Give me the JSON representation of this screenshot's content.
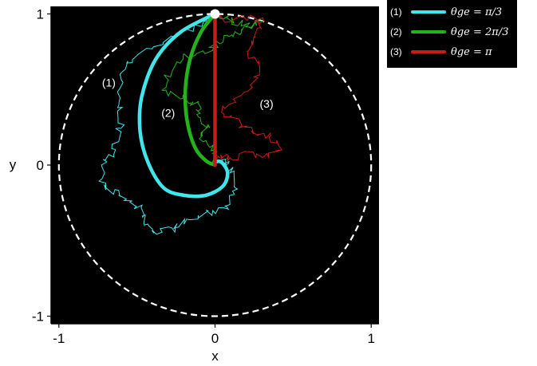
{
  "chart_data": {
    "type": "line",
    "title": "",
    "xlabel": "x",
    "ylabel": "y",
    "xlim": [
      -1.05,
      1.05
    ],
    "ylim": [
      -1.05,
      1.05
    ],
    "xticks": [
      {
        "value": -1,
        "label": "-1"
      },
      {
        "value": 0,
        "label": "0"
      },
      {
        "value": 1,
        "label": "1"
      }
    ],
    "yticks": [
      {
        "value": -1,
        "label": "-1"
      },
      {
        "value": 0,
        "label": "0"
      },
      {
        "value": 1,
        "label": "1"
      }
    ],
    "background": "#000000",
    "grid": false,
    "legend_position": "outside-top-right",
    "unit_circle": {
      "radius": 1,
      "color": "#ffffff",
      "dashed": true
    },
    "start_point": {
      "x": 0,
      "y": 1
    },
    "series": [
      {
        "tag": "(1)",
        "name": "θge = π/3",
        "color": "#41e6ec",
        "label_position": {
          "x": -0.68,
          "y": 0.52
        },
        "smooth": [
          [
            0,
            1
          ],
          [
            -0.22,
            0.88
          ],
          [
            -0.38,
            0.7
          ],
          [
            -0.47,
            0.45
          ],
          [
            -0.48,
            0.22
          ],
          [
            -0.43,
            0.02
          ],
          [
            -0.33,
            -0.15
          ],
          [
            -0.2,
            -0.2
          ],
          [
            -0.06,
            -0.2
          ],
          [
            0.05,
            -0.14
          ],
          [
            0.08,
            -0.05
          ],
          [
            0.04,
            0.02
          ],
          [
            0,
            0.02
          ]
        ],
        "noisy": [
          [
            0,
            1
          ],
          [
            -0.1,
            0.93
          ],
          [
            -0.25,
            0.86
          ],
          [
            -0.4,
            0.78
          ],
          [
            -0.55,
            0.7
          ],
          [
            -0.6,
            0.6
          ],
          [
            -0.63,
            0.45
          ],
          [
            -0.6,
            0.32
          ],
          [
            -0.62,
            0.2
          ],
          [
            -0.65,
            0.1
          ],
          [
            -0.7,
            0.0
          ],
          [
            -0.72,
            -0.12
          ],
          [
            -0.66,
            -0.18
          ],
          [
            -0.55,
            -0.24
          ],
          [
            -0.48,
            -0.3
          ],
          [
            -0.45,
            -0.38
          ],
          [
            -0.38,
            -0.45
          ],
          [
            -0.28,
            -0.42
          ],
          [
            -0.2,
            -0.38
          ],
          [
            -0.1,
            -0.34
          ],
          [
            0.02,
            -0.3
          ],
          [
            0.1,
            -0.24
          ],
          [
            0.13,
            -0.14
          ],
          [
            0.1,
            -0.05
          ],
          [
            0.06,
            0.02
          ],
          [
            0.02,
            0.03
          ]
        ]
      },
      {
        "tag": "(2)",
        "name": "θge = 2π/3",
        "color": "#22b519",
        "label_position": {
          "x": -0.3,
          "y": 0.32
        },
        "smooth": [
          [
            0,
            1
          ],
          [
            -0.09,
            0.88
          ],
          [
            -0.16,
            0.7
          ],
          [
            -0.19,
            0.5
          ],
          [
            -0.18,
            0.3
          ],
          [
            -0.13,
            0.12
          ],
          [
            -0.06,
            0.03
          ],
          [
            0,
            0
          ]
        ],
        "noisy": [
          [
            0,
            1
          ],
          [
            0.1,
            0.96
          ],
          [
            0.2,
            0.93
          ],
          [
            0.28,
            0.95
          ],
          [
            0.18,
            0.9
          ],
          [
            0.1,
            0.87
          ],
          [
            0.02,
            0.82
          ],
          [
            -0.05,
            0.76
          ],
          [
            -0.2,
            0.72
          ],
          [
            -0.3,
            0.6
          ],
          [
            -0.32,
            0.5
          ],
          [
            -0.2,
            0.44
          ],
          [
            -0.1,
            0.4
          ],
          [
            -0.12,
            0.3
          ],
          [
            -0.05,
            0.25
          ],
          [
            -0.1,
            0.18
          ],
          [
            -0.02,
            0.12
          ],
          [
            0,
            0.05
          ],
          [
            0,
            0
          ]
        ]
      },
      {
        "tag": "(3)",
        "name": "θge = π",
        "color": "#cc1a14",
        "label_position": {
          "x": 0.33,
          "y": 0.38
        },
        "smooth": [
          [
            0,
            1
          ],
          [
            0,
            0
          ]
        ],
        "noisy": [
          [
            0,
            1
          ],
          [
            0.08,
            0.96
          ],
          [
            0.22,
            0.98
          ],
          [
            0.3,
            0.95
          ],
          [
            0.25,
            0.85
          ],
          [
            0.2,
            0.75
          ],
          [
            0.3,
            0.62
          ],
          [
            0.22,
            0.5
          ],
          [
            0.12,
            0.42
          ],
          [
            0.05,
            0.35
          ],
          [
            0.15,
            0.28
          ],
          [
            0.25,
            0.22
          ],
          [
            0.35,
            0.18
          ],
          [
            0.42,
            0.12
          ],
          [
            0.33,
            0.06
          ],
          [
            0.2,
            0.08
          ],
          [
            0.1,
            0.04
          ],
          [
            0.05,
            0.06
          ],
          [
            0,
            0.03
          ]
        ]
      }
    ]
  }
}
